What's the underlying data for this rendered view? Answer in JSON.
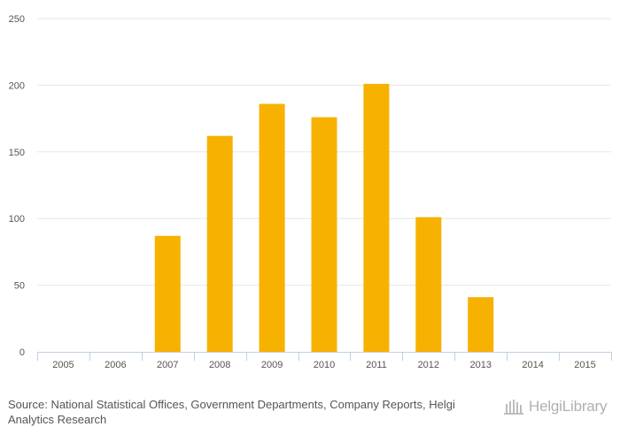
{
  "chart_data": {
    "type": "bar",
    "title": "",
    "xlabel": "",
    "ylabel": "",
    "categories": [
      "2005",
      "2006",
      "2007",
      "2008",
      "2009",
      "2010",
      "2011",
      "2012",
      "2013",
      "2014",
      "2015"
    ],
    "values": [
      null,
      null,
      87,
      162,
      186,
      176,
      201,
      101,
      41,
      null,
      null
    ],
    "ylim": [
      0,
      250
    ],
    "yticks": [
      0,
      50,
      100,
      150,
      200,
      250
    ],
    "grid": true,
    "bar_color": "#f7b100",
    "grid_color": "#e6e6e6",
    "axis_color": "#c0d0e0"
  },
  "footer": {
    "source_prefix": "Source:",
    "source_text": "National Statistical Offices, Government Departments, Company Reports, Helgi Analytics Research",
    "logo_text": "HelgiLibrary"
  }
}
